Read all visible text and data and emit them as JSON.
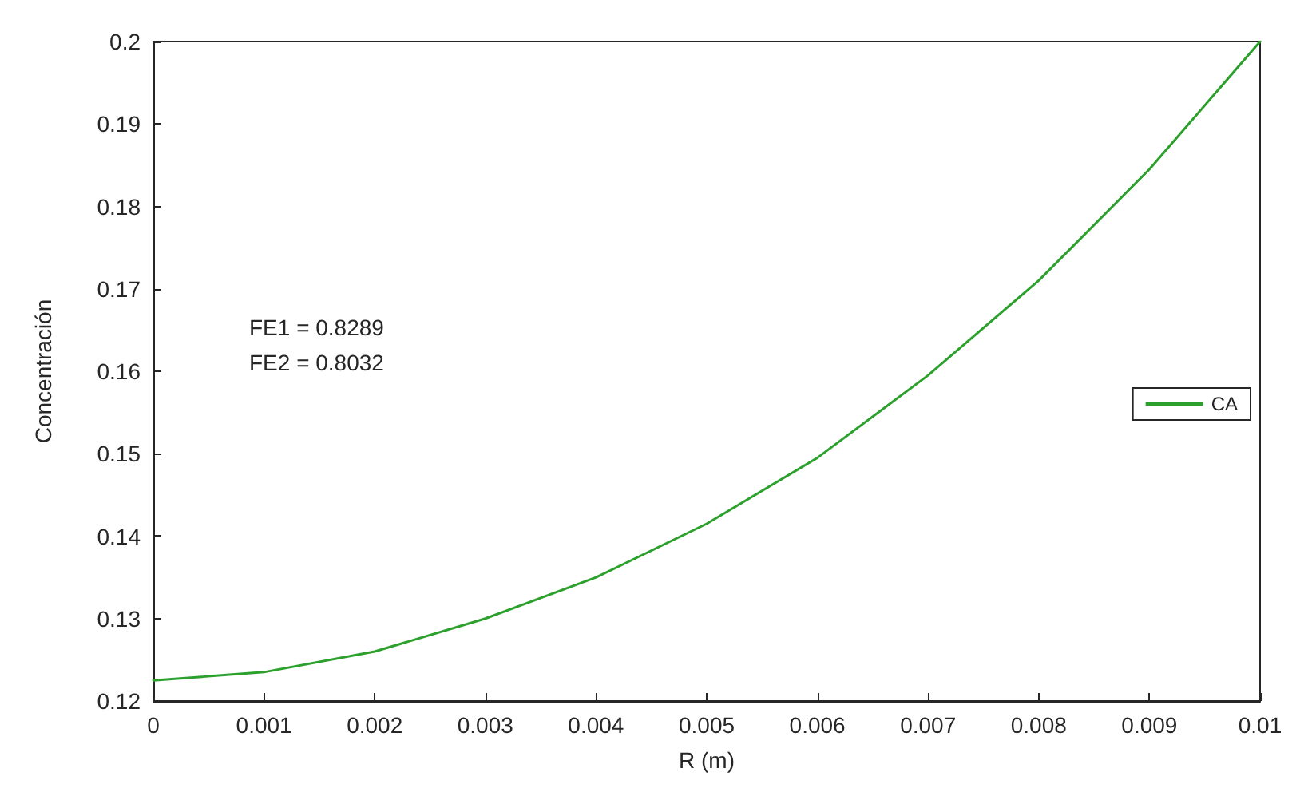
{
  "chart_data": {
    "type": "line",
    "xlabel": "R (m)",
    "ylabel": "Concentración",
    "x": [
      0,
      0.001,
      0.002,
      0.003,
      0.004,
      0.005,
      0.006,
      0.007,
      0.008,
      0.009,
      0.01
    ],
    "series": [
      {
        "name": "CA",
        "color": "#2ca02c",
        "values": [
          0.1225,
          0.1235,
          0.126,
          0.13,
          0.135,
          0.1415,
          0.1495,
          0.1595,
          0.171,
          0.1845,
          0.2
        ]
      }
    ],
    "xlim": [
      0,
      0.01
    ],
    "xticks": [
      0,
      0.001,
      0.002,
      0.003,
      0.004,
      0.005,
      0.006,
      0.007,
      0.008,
      0.009,
      0.01
    ],
    "ylim": [
      0.12,
      0.2
    ],
    "yticks": [
      0.12,
      0.13,
      0.14,
      0.15,
      0.16,
      0.17,
      0.18,
      0.19,
      0.2
    ],
    "annotations": [
      "FE1 = 0.8289",
      "FE2 = 0.8032"
    ],
    "legend": "right",
    "grid": false,
    "marker": "none",
    "line_style": "solid"
  }
}
